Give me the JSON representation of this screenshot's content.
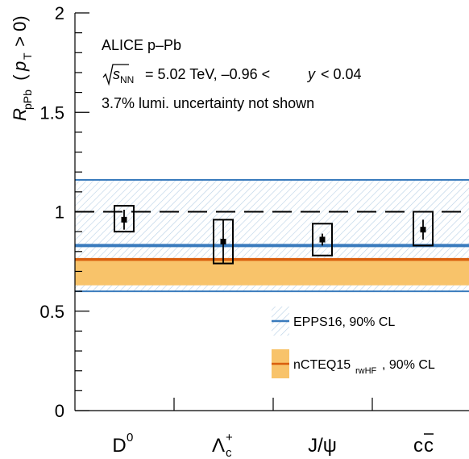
{
  "chart_data": {
    "type": "scatter",
    "annotations": {
      "line1": "ALICE p–Pb",
      "line2_sqrt": "s",
      "line2_sub": "NN",
      "line2_rest": " = 5.02 TeV, –0.96 < ",
      "line2_y": "y",
      "line2_tail": " < 0.04",
      "line3": "3.7% lumi. uncertainty not shown"
    },
    "ylabel": {
      "R": "R",
      "sub": "pPb",
      "open": " (",
      "p": "p",
      "psub": "T",
      "close": " > 0)"
    },
    "ylim": [
      0,
      2
    ],
    "yticks": [
      0,
      0.5,
      1,
      1.5,
      2
    ],
    "ytick_labels": [
      "0",
      "0.5",
      "1",
      "1.5",
      "2"
    ],
    "reference_line": 1,
    "categories": [
      {
        "main": "D",
        "sup": "0",
        "sub": ""
      },
      {
        "main": "Λ",
        "sup": "+",
        "sub": "c"
      },
      {
        "main": "J/ψ",
        "sup": "",
        "sub": ""
      },
      {
        "main": "c",
        "sup": "",
        "sub": "",
        "overline": "c"
      }
    ],
    "series": [
      {
        "values": [
          0.96,
          0.85,
          0.86,
          0.91
        ],
        "stat_err": [
          0.05,
          0.11,
          0.03,
          0.05
        ],
        "syst_low": [
          0.9,
          0.74,
          0.78,
          0.83
        ],
        "syst_high": [
          1.03,
          0.96,
          0.94,
          1.0
        ]
      }
    ],
    "bands": [
      {
        "name": "EPPS16, 90% CL",
        "central": 0.83,
        "low": 0.6,
        "high": 1.16,
        "color": "#3a7bbd",
        "fill": "#cfe0ef"
      },
      {
        "name": "nCTEQ15",
        "name_sub": "rwHF",
        "name_tail": ", 90% CL",
        "central": 0.76,
        "low": 0.63,
        "high": 0.76,
        "color": "#d95f0e",
        "fill": "#f8c36a"
      }
    ],
    "legend_position": "lower-right"
  }
}
